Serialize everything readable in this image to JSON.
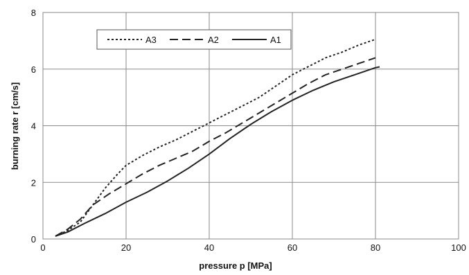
{
  "chart_data": {
    "type": "line",
    "title": "",
    "xlabel": "pressure p [MPa]",
    "ylabel": "burning rate r [cm/s]",
    "xlim": [
      0,
      100
    ],
    "ylim": [
      0,
      8
    ],
    "x_ticks": [
      0,
      20,
      40,
      60,
      80,
      100
    ],
    "y_ticks": [
      0,
      2,
      4,
      6,
      8
    ],
    "grid": true,
    "legend_position": "top-left",
    "series": [
      {
        "name": "A3",
        "line_style": "dotted",
        "color": "#222222",
        "points": [
          [
            3,
            0.1
          ],
          [
            6,
            0.3
          ],
          [
            9,
            0.6
          ],
          [
            12,
            1.2
          ],
          [
            15,
            1.8
          ],
          [
            18,
            2.3
          ],
          [
            20,
            2.6
          ],
          [
            24,
            2.95
          ],
          [
            28,
            3.25
          ],
          [
            32,
            3.5
          ],
          [
            36,
            3.8
          ],
          [
            40,
            4.1
          ],
          [
            44,
            4.4
          ],
          [
            48,
            4.7
          ],
          [
            52,
            5.0
          ],
          [
            56,
            5.4
          ],
          [
            60,
            5.8
          ],
          [
            64,
            6.1
          ],
          [
            68,
            6.4
          ],
          [
            72,
            6.6
          ],
          [
            76,
            6.85
          ],
          [
            80,
            7.05
          ]
        ]
      },
      {
        "name": "A2",
        "line_style": "dashed",
        "color": "#222222",
        "points": [
          [
            3,
            0.1
          ],
          [
            6,
            0.35
          ],
          [
            9,
            0.7
          ],
          [
            12,
            1.2
          ],
          [
            16,
            1.6
          ],
          [
            20,
            1.95
          ],
          [
            24,
            2.3
          ],
          [
            28,
            2.6
          ],
          [
            32,
            2.85
          ],
          [
            36,
            3.1
          ],
          [
            40,
            3.45
          ],
          [
            44,
            3.75
          ],
          [
            48,
            4.1
          ],
          [
            52,
            4.45
          ],
          [
            56,
            4.8
          ],
          [
            60,
            5.15
          ],
          [
            64,
            5.5
          ],
          [
            68,
            5.8
          ],
          [
            72,
            6.0
          ],
          [
            76,
            6.2
          ],
          [
            80,
            6.4
          ]
        ]
      },
      {
        "name": "A1",
        "line_style": "solid",
        "color": "#222222",
        "points": [
          [
            3,
            0.1
          ],
          [
            6,
            0.25
          ],
          [
            10,
            0.55
          ],
          [
            15,
            0.9
          ],
          [
            20,
            1.3
          ],
          [
            25,
            1.65
          ],
          [
            30,
            2.05
          ],
          [
            35,
            2.5
          ],
          [
            40,
            3.0
          ],
          [
            45,
            3.55
          ],
          [
            50,
            4.05
          ],
          [
            55,
            4.5
          ],
          [
            60,
            4.9
          ],
          [
            65,
            5.25
          ],
          [
            70,
            5.55
          ],
          [
            75,
            5.8
          ],
          [
            80,
            6.05
          ],
          [
            81,
            6.08
          ]
        ]
      }
    ]
  }
}
